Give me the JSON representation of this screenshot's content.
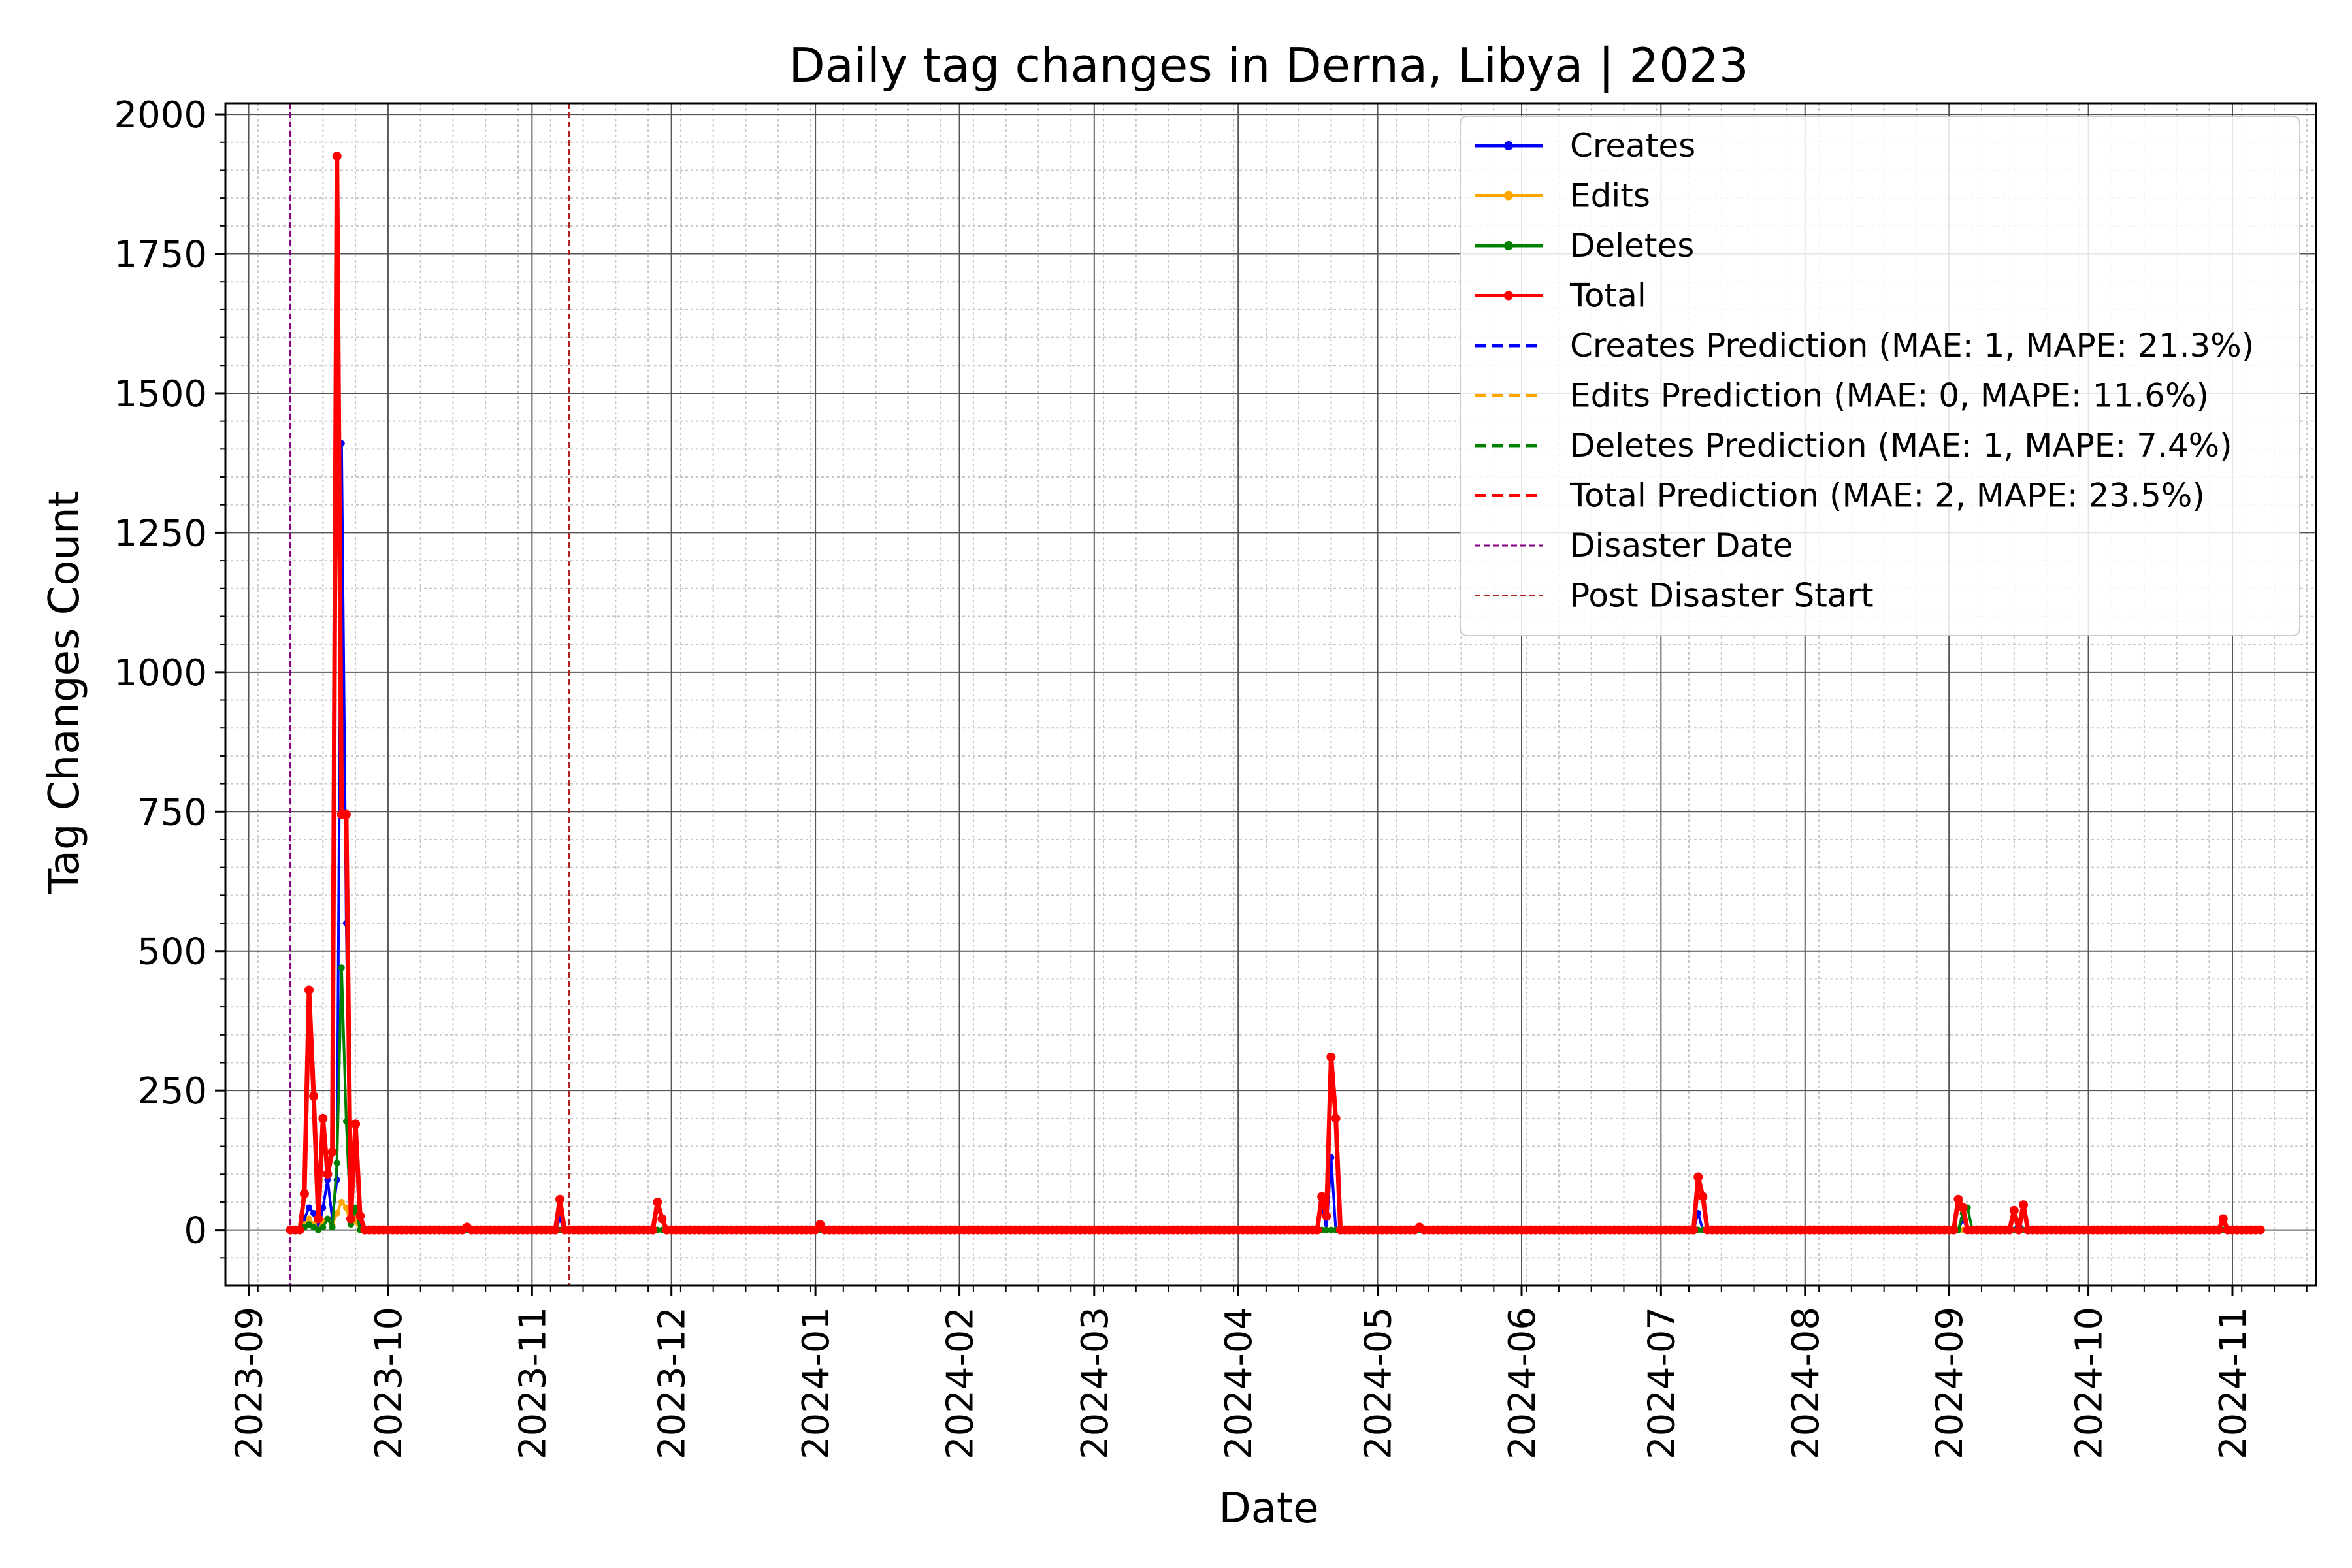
{
  "chart_data": {
    "type": "line",
    "title": "Daily tag changes in Derna, Libya | 2023",
    "xlabel": "Date",
    "ylabel": "Tag Changes Count",
    "x_type": "date",
    "xlim": [
      "2023-08-27",
      "2024-11-19"
    ],
    "ylim": [
      -100,
      2020
    ],
    "y_ticks": [
      0,
      250,
      500,
      750,
      1000,
      1250,
      1500,
      1750,
      2000
    ],
    "x_ticks": [
      "2023-09",
      "2023-10",
      "2023-11",
      "2023-12",
      "2024-01",
      "2024-02",
      "2024-03",
      "2024-04",
      "2024-05",
      "2024-06",
      "2024-07",
      "2024-08",
      "2024-09",
      "2024-10",
      "2024-11"
    ],
    "grid": true,
    "legend_position": "top-right",
    "x_range": [
      "2023-09-10",
      "2024-11-07"
    ],
    "baseline": 0,
    "series": [
      {
        "name": "Creates",
        "color": "#0000ff",
        "style": "solid-marker",
        "points": [
          [
            "2023-09-13",
            20
          ],
          [
            "2023-09-14",
            40
          ],
          [
            "2023-09-15",
            30
          ],
          [
            "2023-09-17",
            40
          ],
          [
            "2023-09-18",
            90
          ],
          [
            "2023-09-19",
            20
          ],
          [
            "2023-09-20",
            90
          ],
          [
            "2023-09-21",
            1410
          ],
          [
            "2023-09-22",
            550
          ],
          [
            "2023-09-23",
            20
          ],
          [
            "2023-09-24",
            150
          ],
          [
            "2023-11-07",
            20
          ],
          [
            "2024-04-19",
            50
          ],
          [
            "2024-04-21",
            130
          ],
          [
            "2024-07-09",
            30
          ],
          [
            "2024-09-04",
            20
          ],
          [
            "2024-09-16",
            15
          ]
        ]
      },
      {
        "name": "Edits",
        "color": "#ffa500",
        "style": "solid-marker",
        "points": [
          [
            "2023-09-13",
            10
          ],
          [
            "2023-09-14",
            20
          ],
          [
            "2023-09-15",
            10
          ],
          [
            "2023-09-17",
            15
          ],
          [
            "2023-09-18",
            20
          ],
          [
            "2023-09-19",
            10
          ],
          [
            "2023-09-20",
            30
          ],
          [
            "2023-09-21",
            50
          ],
          [
            "2023-09-22",
            40
          ],
          [
            "2023-09-23",
            10
          ],
          [
            "2023-09-24",
            15
          ]
        ]
      },
      {
        "name": "Deletes",
        "color": "#008000",
        "style": "solid-marker",
        "points": [
          [
            "2023-09-13",
            5
          ],
          [
            "2023-09-14",
            10
          ],
          [
            "2023-09-15",
            5
          ],
          [
            "2023-09-17",
            5
          ],
          [
            "2023-09-18",
            20
          ],
          [
            "2023-09-19",
            5
          ],
          [
            "2023-09-20",
            120
          ],
          [
            "2023-09-21",
            470
          ],
          [
            "2023-09-22",
            195
          ],
          [
            "2023-09-23",
            10
          ],
          [
            "2023-09-24",
            40
          ],
          [
            "2024-09-04",
            30
          ],
          [
            "2024-09-05",
            40
          ]
        ]
      },
      {
        "name": "Total",
        "color": "#ff0000",
        "style": "solid-marker",
        "points": [
          [
            "2023-09-13",
            65
          ],
          [
            "2023-09-14",
            430
          ],
          [
            "2023-09-15",
            240
          ],
          [
            "2023-09-16",
            20
          ],
          [
            "2023-09-17",
            200
          ],
          [
            "2023-09-18",
            100
          ],
          [
            "2023-09-19",
            140
          ],
          [
            "2023-09-20",
            1925
          ],
          [
            "2023-09-21",
            745
          ],
          [
            "2023-09-22",
            745
          ],
          [
            "2023-09-23",
            20
          ],
          [
            "2023-09-24",
            190
          ],
          [
            "2023-09-25",
            25
          ],
          [
            "2023-10-18",
            5
          ],
          [
            "2023-11-07",
            55
          ],
          [
            "2023-11-28",
            50
          ],
          [
            "2023-11-29",
            20
          ],
          [
            "2024-01-02",
            10
          ],
          [
            "2024-04-19",
            60
          ],
          [
            "2024-04-20",
            25
          ],
          [
            "2024-04-21",
            310
          ],
          [
            "2024-04-22",
            200
          ],
          [
            "2024-05-10",
            5
          ],
          [
            "2024-07-09",
            95
          ],
          [
            "2024-07-10",
            60
          ],
          [
            "2024-09-03",
            55
          ],
          [
            "2024-09-04",
            40
          ],
          [
            "2024-09-15",
            35
          ],
          [
            "2024-09-17",
            45
          ],
          [
            "2024-10-30",
            20
          ]
        ]
      },
      {
        "name": "Creates Prediction (MAE: 1, MAPE: 21.3%)",
        "color": "#0000ff",
        "style": "dashed"
      },
      {
        "name": "Edits Prediction (MAE: 0, MAPE: 11.6%)",
        "color": "#ffa500",
        "style": "dashed"
      },
      {
        "name": "Deletes Prediction (MAE: 1, MAPE: 7.4%)",
        "color": "#008000",
        "style": "dashed"
      },
      {
        "name": "Total Prediction (MAE: 2, MAPE: 23.5%)",
        "color": "#ff0000",
        "style": "dashed"
      }
    ],
    "vlines": [
      {
        "name": "Disaster Date",
        "date": "2023-09-10",
        "color": "#800080",
        "style": "dashed-thin"
      },
      {
        "name": "Post Disaster Start",
        "date": "2023-11-09",
        "color": "#b22222",
        "style": "dashed-thin"
      }
    ]
  }
}
